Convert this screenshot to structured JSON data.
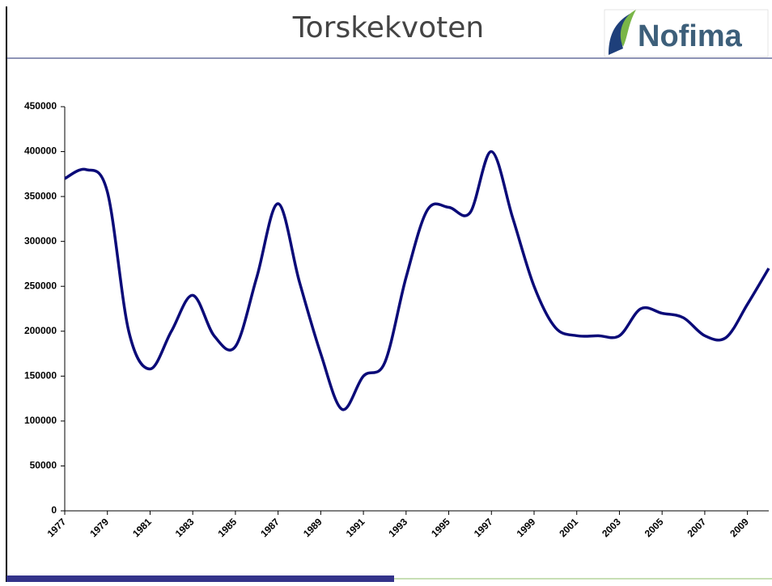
{
  "logo": "Nofima",
  "chart_data": {
    "type": "line",
    "title": "Torskekvoten",
    "x": [
      1977,
      1978,
      1979,
      1980,
      1981,
      1982,
      1983,
      1984,
      1985,
      1986,
      1987,
      1988,
      1989,
      1990,
      1991,
      1992,
      1993,
      1994,
      1995,
      1996,
      1997,
      1998,
      1999,
      2000,
      2001,
      2002,
      2003,
      2004,
      2005,
      2006,
      2007,
      2008,
      2009,
      2010
    ],
    "series": [
      {
        "name": "Torskekvote",
        "color": "#0a0a78",
        "values": [
          370000,
          380000,
          355000,
          200000,
          158000,
          200000,
          240000,
          195000,
          183000,
          260000,
          342000,
          255000,
          175000,
          113000,
          150000,
          165000,
          260000,
          335000,
          338000,
          332000,
          400000,
          326000,
          250000,
          204000,
          195000,
          195000,
          195000,
          225000,
          220000,
          215000,
          195000,
          193000,
          230000,
          270000
        ]
      }
    ],
    "xlim": [
      1977,
      2010
    ],
    "xticks": [
      1977,
      1979,
      1981,
      1983,
      1985,
      1987,
      1989,
      1991,
      1993,
      1995,
      1997,
      1999,
      2001,
      2003,
      2005,
      2007,
      2009
    ],
    "ylim": [
      0,
      450000
    ],
    "yticks": [
      0,
      50000,
      100000,
      150000,
      200000,
      250000,
      300000,
      350000,
      400000,
      450000
    ]
  }
}
